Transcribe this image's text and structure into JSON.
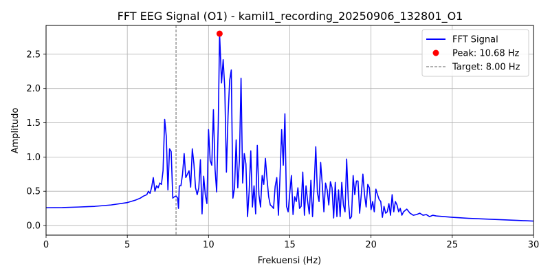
{
  "chart_data": {
    "type": "line",
    "title": "FFT EEG Signal (O1) - kamil1_recording_20250906_132801_O1",
    "xlabel": "Frekuensi (Hz)",
    "ylabel": "Amplitudo",
    "xlim": [
      0,
      30
    ],
    "ylim": [
      -0.14,
      2.92
    ],
    "xticks": [
      0,
      5,
      10,
      15,
      20,
      25,
      30
    ],
    "xtick_labels": [
      "0",
      "5",
      "10",
      "15",
      "20",
      "25",
      "30"
    ],
    "yticks": [
      0.0,
      0.5,
      1.0,
      1.5,
      2.0,
      2.5
    ],
    "ytick_labels": [
      "0.0",
      "0.5",
      "1.0",
      "1.5",
      "2.0",
      "2.5"
    ],
    "grid": true,
    "legend_position": "top-right",
    "legend": [
      {
        "label": "FFT Signal",
        "kind": "line",
        "color": "#0000ff"
      },
      {
        "label": "Peak: 10.68 Hz",
        "kind": "marker",
        "color": "#ff0000"
      },
      {
        "label": "Target: 8.00 Hz",
        "kind": "dashed",
        "color": "#808080"
      }
    ],
    "series": [
      {
        "color": "#0000ff",
        "points": [
          [
            0.0,
            0.26
          ],
          [
            1.0,
            0.262
          ],
          [
            2.0,
            0.27
          ],
          [
            3.0,
            0.28
          ],
          [
            4.0,
            0.3
          ],
          [
            5.0,
            0.335
          ],
          [
            5.5,
            0.37
          ],
          [
            5.8,
            0.4
          ],
          [
            6.0,
            0.43
          ],
          [
            6.2,
            0.45
          ],
          [
            6.3,
            0.5
          ],
          [
            6.4,
            0.47
          ],
          [
            6.5,
            0.56
          ],
          [
            6.6,
            0.7
          ],
          [
            6.7,
            0.5
          ],
          [
            6.8,
            0.58
          ],
          [
            6.9,
            0.55
          ],
          [
            7.0,
            0.62
          ],
          [
            7.1,
            0.6
          ],
          [
            7.2,
            0.8
          ],
          [
            7.3,
            1.55
          ],
          [
            7.4,
            1.3
          ],
          [
            7.5,
            0.52
          ],
          [
            7.6,
            1.12
          ],
          [
            7.7,
            1.08
          ],
          [
            7.8,
            0.4
          ],
          [
            7.9,
            0.42
          ],
          [
            8.0,
            0.43
          ],
          [
            8.1,
            0.4
          ],
          [
            8.15,
            0.25
          ],
          [
            8.2,
            0.58
          ],
          [
            8.3,
            0.58
          ],
          [
            8.4,
            0.75
          ],
          [
            8.5,
            1.05
          ],
          [
            8.6,
            0.7
          ],
          [
            8.7,
            0.75
          ],
          [
            8.8,
            0.8
          ],
          [
            8.9,
            0.56
          ],
          [
            9.0,
            1.12
          ],
          [
            9.1,
            0.9
          ],
          [
            9.2,
            0.55
          ],
          [
            9.3,
            0.45
          ],
          [
            9.4,
            0.55
          ],
          [
            9.5,
            0.96
          ],
          [
            9.6,
            0.17
          ],
          [
            9.7,
            0.72
          ],
          [
            9.8,
            0.45
          ],
          [
            9.9,
            0.32
          ],
          [
            10.0,
            1.4
          ],
          [
            10.1,
            0.95
          ],
          [
            10.2,
            0.88
          ],
          [
            10.3,
            1.69
          ],
          [
            10.4,
            0.82
          ],
          [
            10.5,
            0.49
          ],
          [
            10.6,
            1.5
          ],
          [
            10.68,
            2.8
          ],
          [
            10.8,
            2.08
          ],
          [
            10.9,
            2.42
          ],
          [
            11.0,
            2.0
          ],
          [
            11.1,
            0.78
          ],
          [
            11.2,
            1.6
          ],
          [
            11.3,
            2.12
          ],
          [
            11.4,
            2.27
          ],
          [
            11.5,
            0.4
          ],
          [
            11.6,
            0.55
          ],
          [
            11.7,
            1.25
          ],
          [
            11.8,
            0.55
          ],
          [
            11.9,
            0.95
          ],
          [
            12.0,
            2.15
          ],
          [
            12.1,
            0.62
          ],
          [
            12.2,
            1.05
          ],
          [
            12.3,
            0.9
          ],
          [
            12.4,
            0.13
          ],
          [
            12.5,
            0.5
          ],
          [
            12.6,
            1.09
          ],
          [
            12.7,
            0.27
          ],
          [
            12.8,
            0.58
          ],
          [
            12.9,
            0.17
          ],
          [
            13.0,
            1.17
          ],
          [
            13.1,
            0.45
          ],
          [
            13.2,
            0.27
          ],
          [
            13.3,
            0.73
          ],
          [
            13.4,
            0.6
          ],
          [
            13.5,
            0.98
          ],
          [
            13.6,
            0.68
          ],
          [
            13.7,
            0.42
          ],
          [
            13.8,
            0.3
          ],
          [
            13.9,
            0.28
          ],
          [
            14.0,
            0.25
          ],
          [
            14.1,
            0.57
          ],
          [
            14.2,
            0.7
          ],
          [
            14.3,
            0.15
          ],
          [
            14.4,
            0.72
          ],
          [
            14.5,
            1.4
          ],
          [
            14.6,
            0.88
          ],
          [
            14.7,
            1.63
          ],
          [
            14.8,
            0.28
          ],
          [
            14.9,
            0.2
          ],
          [
            15.0,
            0.48
          ],
          [
            15.1,
            0.73
          ],
          [
            15.2,
            0.16
          ],
          [
            15.3,
            0.42
          ],
          [
            15.4,
            0.35
          ],
          [
            15.5,
            0.55
          ],
          [
            15.6,
            0.25
          ],
          [
            15.7,
            0.28
          ],
          [
            15.8,
            0.78
          ],
          [
            15.9,
            0.15
          ],
          [
            16.0,
            0.58
          ],
          [
            16.1,
            0.35
          ],
          [
            16.2,
            0.17
          ],
          [
            16.3,
            0.66
          ],
          [
            16.4,
            0.13
          ],
          [
            16.5,
            0.58
          ],
          [
            16.6,
            1.15
          ],
          [
            16.7,
            0.48
          ],
          [
            16.8,
            0.35
          ],
          [
            16.9,
            0.92
          ],
          [
            17.0,
            0.6
          ],
          [
            17.1,
            0.2
          ],
          [
            17.2,
            0.62
          ],
          [
            17.3,
            0.52
          ],
          [
            17.4,
            0.3
          ],
          [
            17.5,
            0.64
          ],
          [
            17.6,
            0.55
          ],
          [
            17.7,
            0.11
          ],
          [
            17.8,
            0.63
          ],
          [
            17.9,
            0.13
          ],
          [
            18.0,
            0.52
          ],
          [
            18.1,
            0.13
          ],
          [
            18.2,
            0.63
          ],
          [
            18.3,
            0.3
          ],
          [
            18.4,
            0.2
          ],
          [
            18.5,
            0.97
          ],
          [
            18.6,
            0.38
          ],
          [
            18.7,
            0.1
          ],
          [
            18.8,
            0.13
          ],
          [
            18.9,
            0.73
          ],
          [
            19.0,
            0.45
          ],
          [
            19.1,
            0.65
          ],
          [
            19.2,
            0.65
          ],
          [
            19.3,
            0.18
          ],
          [
            19.4,
            0.45
          ],
          [
            19.5,
            0.75
          ],
          [
            19.6,
            0.45
          ],
          [
            19.7,
            0.27
          ],
          [
            19.8,
            0.6
          ],
          [
            19.9,
            0.55
          ],
          [
            20.0,
            0.23
          ],
          [
            20.1,
            0.35
          ],
          [
            20.2,
            0.2
          ],
          [
            20.3,
            0.53
          ],
          [
            20.4,
            0.45
          ],
          [
            20.5,
            0.38
          ],
          [
            20.6,
            0.35
          ],
          [
            20.7,
            0.12
          ],
          [
            20.8,
            0.28
          ],
          [
            20.9,
            0.18
          ],
          [
            21.0,
            0.2
          ],
          [
            21.1,
            0.32
          ],
          [
            21.2,
            0.15
          ],
          [
            21.3,
            0.45
          ],
          [
            21.4,
            0.2
          ],
          [
            21.5,
            0.35
          ],
          [
            21.6,
            0.3
          ],
          [
            21.7,
            0.2
          ],
          [
            21.8,
            0.25
          ],
          [
            21.9,
            0.15
          ],
          [
            22.0,
            0.2
          ],
          [
            22.2,
            0.24
          ],
          [
            22.4,
            0.18
          ],
          [
            22.6,
            0.15
          ],
          [
            22.8,
            0.16
          ],
          [
            23.0,
            0.18
          ],
          [
            23.2,
            0.15
          ],
          [
            23.4,
            0.16
          ],
          [
            23.6,
            0.13
          ],
          [
            23.8,
            0.15
          ],
          [
            24.0,
            0.14
          ],
          [
            24.5,
            0.13
          ],
          [
            25.0,
            0.12
          ],
          [
            26.0,
            0.105
          ],
          [
            27.0,
            0.095
          ],
          [
            28.0,
            0.085
          ],
          [
            29.0,
            0.075
          ],
          [
            30.0,
            0.065
          ]
        ]
      }
    ],
    "peak": {
      "x": 10.68,
      "y": 2.8,
      "color": "#ff0000"
    },
    "target_line": {
      "x": 8.0,
      "color": "#808080",
      "style": "dashed"
    }
  }
}
